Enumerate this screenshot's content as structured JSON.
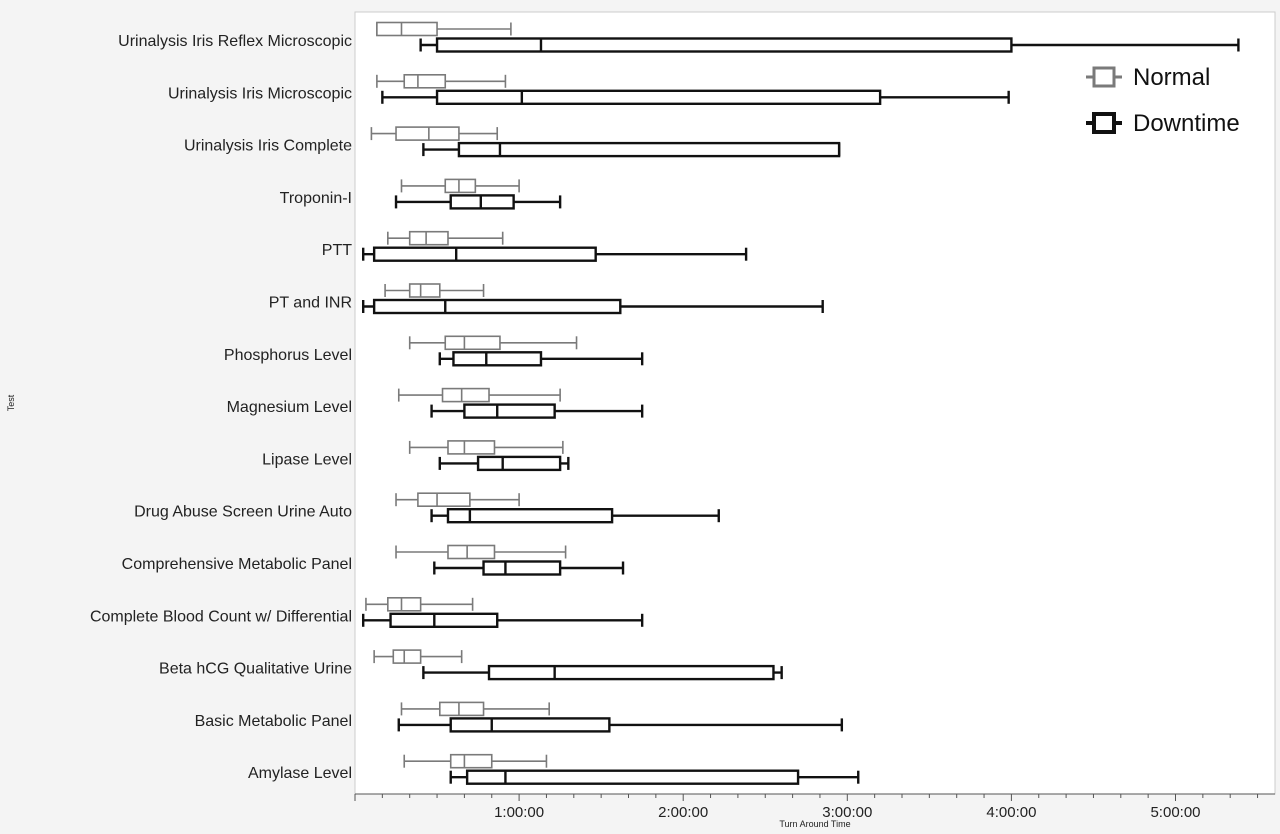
{
  "chart_data": {
    "type": "boxplot",
    "orientation": "horizontal",
    "title": "",
    "xlabel": "Turn Around Time",
    "ylabel": "Test",
    "x_unit": "minutes",
    "xlim": [
      0,
      340
    ],
    "xticks": [
      {
        "value": 60,
        "label": "1:00:00"
      },
      {
        "value": 120,
        "label": "2:00:00"
      },
      {
        "value": 180,
        "label": "3:00:00"
      },
      {
        "value": 240,
        "label": "4:00:00"
      },
      {
        "value": 300,
        "label": "5:00:00"
      }
    ],
    "grid": false,
    "legend_position": "top-right",
    "series": [
      {
        "name": "Normal",
        "color": "#7a7a7a"
      },
      {
        "name": "Downtime",
        "color": "#111111"
      }
    ],
    "categories": [
      "Urinalysis Iris Reflex Microscopic",
      "Urinalysis Iris Microscopic",
      "Urinalysis Iris Complete",
      "Troponin-I",
      "PTT",
      "PT and INR",
      "Phosphorus Level",
      "Magnesium Level",
      "Lipase Level",
      "Drug Abuse Screen Urine Auto",
      "Comprehensive Metabolic Panel",
      "Complete Blood Count w/ Differential",
      "Beta hCG Qualitative Urine",
      "Basic Metabolic Panel",
      "Amylase Level"
    ],
    "data": [
      {
        "category": "Urinalysis Iris Reflex Microscopic",
        "Normal": {
          "min": 8,
          "q1": 8,
          "median": 17,
          "q3": 30,
          "max": 57
        },
        "Downtime": {
          "min": 24,
          "q1": 30,
          "median": 68,
          "q3": 240,
          "max": 323
        }
      },
      {
        "category": "Urinalysis Iris Microscopic",
        "Normal": {
          "min": 8,
          "q1": 18,
          "median": 23,
          "q3": 33,
          "max": 55
        },
        "Downtime": {
          "min": 10,
          "q1": 30,
          "median": 61,
          "q3": 192,
          "max": 239
        }
      },
      {
        "category": "Urinalysis Iris Complete",
        "Normal": {
          "min": 6,
          "q1": 15,
          "median": 27,
          "q3": 38,
          "max": 52
        },
        "Downtime": {
          "min": 25,
          "q1": 38,
          "median": 53,
          "q3": 177,
          "max": 177
        }
      },
      {
        "category": "Troponin-I",
        "Normal": {
          "min": 17,
          "q1": 33,
          "median": 38,
          "q3": 44,
          "max": 60
        },
        "Downtime": {
          "min": 15,
          "q1": 35,
          "median": 46,
          "q3": 58,
          "max": 75
        }
      },
      {
        "category": "PTT",
        "Normal": {
          "min": 12,
          "q1": 20,
          "median": 26,
          "q3": 34,
          "max": 54
        },
        "Downtime": {
          "min": 3,
          "q1": 7,
          "median": 37,
          "q3": 88,
          "max": 143
        }
      },
      {
        "category": "PT and INR",
        "Normal": {
          "min": 11,
          "q1": 20,
          "median": 24,
          "q3": 31,
          "max": 47
        },
        "Downtime": {
          "min": 3,
          "q1": 7,
          "median": 33,
          "q3": 97,
          "max": 171
        }
      },
      {
        "category": "Phosphorus Level",
        "Normal": {
          "min": 20,
          "q1": 33,
          "median": 40,
          "q3": 53,
          "max": 81
        },
        "Downtime": {
          "min": 31,
          "q1": 36,
          "median": 48,
          "q3": 68,
          "max": 105
        }
      },
      {
        "category": "Magnesium Level",
        "Normal": {
          "min": 16,
          "q1": 32,
          "median": 39,
          "q3": 49,
          "max": 75
        },
        "Downtime": {
          "min": 28,
          "q1": 40,
          "median": 52,
          "q3": 73,
          "max": 105
        }
      },
      {
        "category": "Lipase Level",
        "Normal": {
          "min": 20,
          "q1": 34,
          "median": 40,
          "q3": 51,
          "max": 76
        },
        "Downtime": {
          "min": 31,
          "q1": 45,
          "median": 54,
          "q3": 75,
          "max": 78
        }
      },
      {
        "category": "Drug Abuse Screen Urine Auto",
        "Normal": {
          "min": 15,
          "q1": 23,
          "median": 30,
          "q3": 42,
          "max": 60
        },
        "Downtime": {
          "min": 28,
          "q1": 34,
          "median": 42,
          "q3": 94,
          "max": 133
        }
      },
      {
        "category": "Comprehensive Metabolic Panel",
        "Normal": {
          "min": 15,
          "q1": 34,
          "median": 41,
          "q3": 51,
          "max": 77
        },
        "Downtime": {
          "min": 29,
          "q1": 47,
          "median": 55,
          "q3": 75,
          "max": 98
        }
      },
      {
        "category": "Complete Blood Count w/ Differential",
        "Normal": {
          "min": 4,
          "q1": 12,
          "median": 17,
          "q3": 24,
          "max": 43
        },
        "Downtime": {
          "min": 3,
          "q1": 13,
          "median": 29,
          "q3": 52,
          "max": 105
        }
      },
      {
        "category": "Beta hCG Qualitative Urine",
        "Normal": {
          "min": 7,
          "q1": 14,
          "median": 18,
          "q3": 24,
          "max": 39
        },
        "Downtime": {
          "min": 25,
          "q1": 49,
          "median": 73,
          "q3": 153,
          "max": 156
        }
      },
      {
        "category": "Basic Metabolic Panel",
        "Normal": {
          "min": 17,
          "q1": 31,
          "median": 38,
          "q3": 47,
          "max": 71
        },
        "Downtime": {
          "min": 16,
          "q1": 35,
          "median": 50,
          "q3": 93,
          "max": 178
        }
      },
      {
        "category": "Amylase Level",
        "Normal": {
          "min": 18,
          "q1": 35,
          "median": 40,
          "q3": 50,
          "max": 70
        },
        "Downtime": {
          "min": 35,
          "q1": 41,
          "median": 55,
          "q3": 162,
          "max": 184
        }
      }
    ]
  }
}
